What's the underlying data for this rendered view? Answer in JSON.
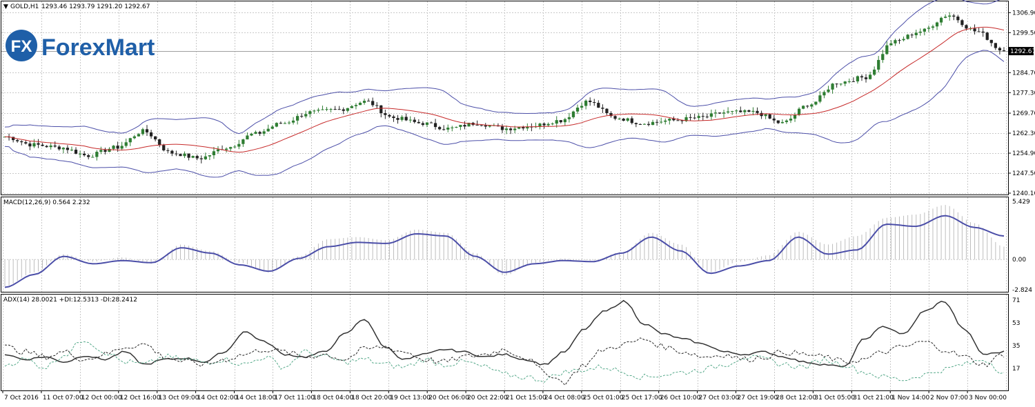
{
  "header": {
    "symbol": "GOLD,H1",
    "ohlc": "1293.46 1293.79 1291.20 1292.67"
  },
  "logo": {
    "mark": "FX",
    "name": "ForexMart"
  },
  "colors": {
    "candle_up": "#2e7d32",
    "candle_down": "#222222",
    "ma_red": "#c62828",
    "band_blue": "#4b4ea8",
    "macd_line": "#4b4ea8",
    "macd_hist": "#bdbdbd",
    "adx_main": "#333333",
    "di_plus": "#56a98a",
    "di_minus": "#222222",
    "grid": "#c8c8c8"
  },
  "chart_data": [
    {
      "type": "line",
      "title": "GOLD,H1",
      "ylim": [
        1240.1,
        1310.3
      ],
      "y_ticks": [
        "1306.90",
        "1299.50",
        "1292.67",
        "1284.70",
        "1277.30",
        "1269.70",
        "1262.30",
        "1254.90",
        "1247.50",
        "1240.10"
      ],
      "current_price": 1292.67,
      "x_tick_labels": [
        "7 Oct 2016",
        "11 Oct 07:00",
        "12 Oct 00:00",
        "12 Oct 16:00",
        "13 Oct 09:00",
        "14 Oct 02:00",
        "14 Oct 18:00",
        "17 Oct 11:00",
        "18 Oct 04:00",
        "18 Oct 20:00",
        "19 Oct 13:00",
        "20 Oct 06:00",
        "20 Oct 22:00",
        "21 Oct 15:00",
        "24 Oct 08:00",
        "25 Oct 01:00",
        "25 Oct 17:00",
        "26 Oct 10:00",
        "27 Oct 03:00",
        "27 Oct 19:00",
        "28 Oct 12:00",
        "31 Oct 05:00",
        "31 Oct 21:00",
        "1 Nov 14:00",
        "2 Nov 07:00",
        "3 Nov 00:00"
      ],
      "close_anchors": [
        1261,
        1258,
        1257,
        1254,
        1257,
        1263,
        1255,
        1253,
        1257,
        1262,
        1266,
        1270,
        1271,
        1274,
        1268,
        1266,
        1264,
        1266,
        1264,
        1265,
        1267,
        1274,
        1268,
        1266,
        1267,
        1268,
        1270,
        1270,
        1266,
        1273,
        1281,
        1283,
        1296,
        1300,
        1306,
        1300,
        1292.67
      ],
      "series": [
        {
          "name": "Bollinger Bands"
        },
        {
          "name": "Moving Average"
        }
      ]
    },
    {
      "type": "line",
      "title": "MACD(12,26,9) 0.564 2.232",
      "ylim": [
        -2.824,
        5.429
      ],
      "y_ticks": [
        "5.429",
        "0.00",
        "-2.824"
      ],
      "signal_anchors": [
        -2.6,
        -1.4,
        0.3,
        -0.4,
        -0.1,
        -0.3,
        1.1,
        0.6,
        -0.5,
        -1.1,
        0.1,
        1.2,
        1.6,
        1.5,
        2.4,
        2.2,
        0.3,
        -1.2,
        -0.4,
        -0.1,
        -0.2,
        0.6,
        2.1,
        0.8,
        -1.3,
        -0.6,
        -0.1,
        2.1,
        0.5,
        0.9,
        3.3,
        3.1,
        4.1,
        3.0,
        2.2
      ],
      "hist_anchors": [
        -2.5,
        -1.2,
        0.5,
        -0.2,
        0.2,
        -0.4,
        1.4,
        0.8,
        -0.3,
        -1.2,
        0.3,
        1.9,
        2.1,
        1.8,
        2.8,
        2.5,
        0.6,
        -1.5,
        -0.3,
        0.1,
        -0.1,
        0.7,
        2.5,
        1.4,
        -1.2,
        -0.2,
        0.4,
        2.6,
        1.4,
        2.2,
        3.9,
        4.2,
        5.1,
        3.4,
        1.2
      ]
    },
    {
      "type": "line",
      "title": "ADX(14) 28.0021 +DI:12.5313 -DI:28.2412",
      "ylim": [
        0,
        71
      ],
      "y_ticks": [
        "71",
        "53",
        "35",
        "17"
      ],
      "series": [
        {
          "name": "ADX",
          "anchors": [
            28,
            24,
            26,
            22,
            27,
            24,
            30,
            20,
            24,
            25,
            22,
            30,
            46,
            38,
            28,
            26,
            30,
            44,
            56,
            34,
            24,
            28,
            32,
            30,
            26,
            28,
            24,
            20,
            30,
            48,
            62,
            70,
            52,
            44,
            40,
            36,
            30,
            28,
            30,
            26,
            22,
            20,
            18,
            40,
            50,
            44,
            62,
            70,
            48,
            28,
            30
          ]
        },
        {
          "name": "+DI",
          "anchors": [
            20,
            24,
            18,
            28,
            40,
            30,
            22,
            20,
            26,
            24,
            22,
            24,
            20,
            26,
            18,
            30,
            26,
            22,
            24,
            20,
            18,
            24,
            20,
            22,
            18,
            12,
            10,
            8,
            14,
            16,
            18,
            14,
            10,
            12,
            14,
            16,
            20,
            26,
            24,
            20,
            18,
            24,
            20,
            14,
            10,
            8,
            12,
            16,
            20,
            24,
            14
          ]
        },
        {
          "name": "-DI",
          "anchors": [
            34,
            30,
            26,
            30,
            24,
            28,
            34,
            36,
            26,
            22,
            20,
            24,
            28,
            32,
            30,
            26,
            28,
            24,
            32,
            34,
            30,
            24,
            22,
            26,
            28,
            32,
            26,
            14,
            6,
            20,
            32,
            36,
            40,
            34,
            30,
            26,
            28,
            24,
            26,
            30,
            28,
            26,
            22,
            24,
            30,
            34,
            38,
            32,
            26,
            20,
            28
          ]
        }
      ]
    }
  ]
}
